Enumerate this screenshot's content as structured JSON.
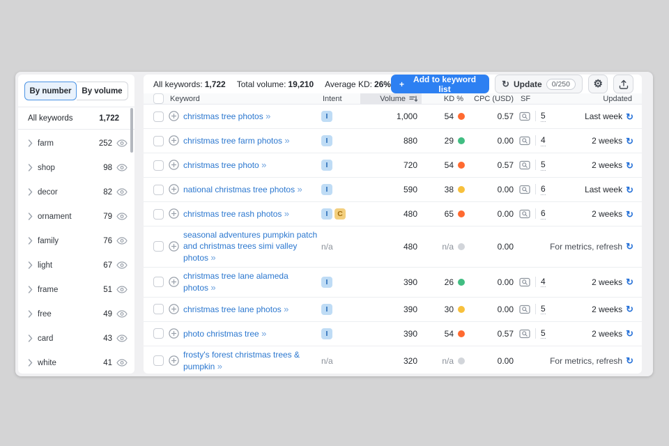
{
  "view_toggle": {
    "by_number": "By number",
    "by_volume": "By volume"
  },
  "sidebar": {
    "header": {
      "label": "All keywords",
      "count": "1,722"
    },
    "groups": [
      {
        "label": "farm",
        "count": "252"
      },
      {
        "label": "shop",
        "count": "98"
      },
      {
        "label": "decor",
        "count": "82"
      },
      {
        "label": "ornament",
        "count": "79"
      },
      {
        "label": "family",
        "count": "76"
      },
      {
        "label": "light",
        "count": "67"
      },
      {
        "label": "frame",
        "count": "51"
      },
      {
        "label": "free",
        "count": "49"
      },
      {
        "label": "card",
        "count": "43"
      },
      {
        "label": "white",
        "count": "41"
      }
    ]
  },
  "summary": {
    "keywords_label": "All keywords:",
    "keywords_value": "1,722",
    "volume_label": "Total volume:",
    "volume_value": "19,210",
    "kd_label": "Average KD:",
    "kd_value": "26%"
  },
  "actions": {
    "add_to_list_label": "Add to keyword list",
    "update_label": "Update",
    "update_quota": "0/250"
  },
  "icons": {
    "plus": "+",
    "refresh": "↻",
    "gear": "⚙",
    "chevrons_right": "»"
  },
  "table": {
    "columns": {
      "keyword": "Keyword",
      "intent": "Intent",
      "volume": "Volume",
      "kd": "KD %",
      "cpc": "CPC (USD)",
      "sf": "SF",
      "updated": "Updated"
    },
    "rows": [
      {
        "keyword": "christmas tree photos",
        "intents": [
          "I"
        ],
        "volume": "1,000",
        "kd": "54",
        "kd_level": "orange",
        "cpc": "0.57",
        "sf": "5",
        "updated": "Last week"
      },
      {
        "keyword": "christmas tree farm photos",
        "intents": [
          "I"
        ],
        "volume": "880",
        "kd": "29",
        "kd_level": "green",
        "cpc": "0.00",
        "sf": "4",
        "updated": "2 weeks"
      },
      {
        "keyword": "christmas tree photo",
        "intents": [
          "I"
        ],
        "volume": "720",
        "kd": "54",
        "kd_level": "orange",
        "cpc": "0.57",
        "sf": "5",
        "updated": "2 weeks"
      },
      {
        "keyword": "national christmas tree photos",
        "intents": [
          "I"
        ],
        "volume": "590",
        "kd": "38",
        "kd_level": "yellow",
        "cpc": "0.00",
        "sf": "6",
        "updated": "Last week"
      },
      {
        "keyword": "christmas tree rash photos",
        "intents": [
          "I",
          "C"
        ],
        "volume": "480",
        "kd": "65",
        "kd_level": "orange",
        "cpc": "0.00",
        "sf": "6",
        "updated": "2 weeks"
      },
      {
        "keyword": "seasonal adventures pumpkin patch and christmas trees simi valley photos",
        "intents": [],
        "intent_na": "n/a",
        "volume": "480",
        "kd": "n/a",
        "kd_level": "gray",
        "cpc": "0.00",
        "sf": null,
        "updated": "For metrics, refresh"
      },
      {
        "keyword": "christmas tree lane alameda photos",
        "intents": [
          "I"
        ],
        "volume": "390",
        "kd": "26",
        "kd_level": "green",
        "cpc": "0.00",
        "sf": "4",
        "updated": "2 weeks"
      },
      {
        "keyword": "christmas tree lane photos",
        "intents": [
          "I"
        ],
        "volume": "390",
        "kd": "30",
        "kd_level": "yellow",
        "cpc": "0.00",
        "sf": "5",
        "updated": "2 weeks"
      },
      {
        "keyword": "photo christmas tree",
        "intents": [
          "I"
        ],
        "volume": "390",
        "kd": "54",
        "kd_level": "orange",
        "cpc": "0.57",
        "sf": "5",
        "updated": "2 weeks"
      },
      {
        "keyword": "frosty's forest christmas trees & pumpkin",
        "intents": [],
        "intent_na": "n/a",
        "volume": "320",
        "kd": "n/a",
        "kd_level": "gray",
        "cpc": "0.00",
        "sf": null,
        "updated": "For metrics, refresh"
      }
    ]
  },
  "colors": {
    "accent_blue": "#2d80f2",
    "link_blue": "#2b77cf",
    "refresh_blue": "#2470d8",
    "kd_orange": "#ff6a30",
    "kd_green": "#41bd82",
    "kd_yellow": "#f7c03c",
    "kd_gray": "#d2d5da",
    "intent_i_bg": "#bfdcf5",
    "intent_i_text": "#2468b5",
    "intent_c_bg": "#f3cf7e",
    "intent_c_text": "#a06c0b"
  }
}
